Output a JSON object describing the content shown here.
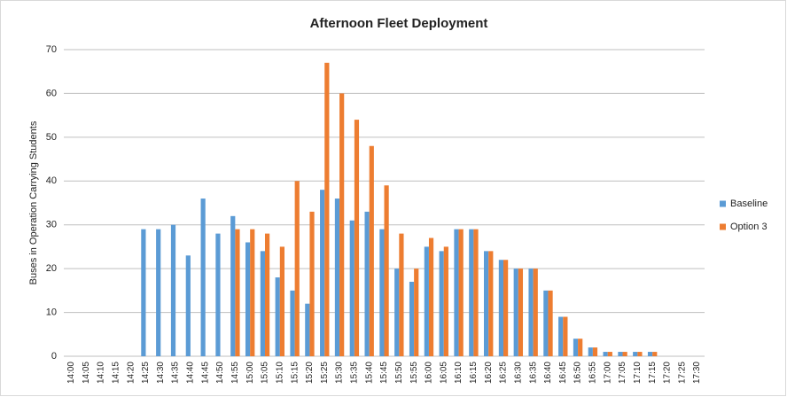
{
  "chart_data": {
    "type": "bar",
    "title": "Afternoon Fleet Deployment",
    "y_label": "Buses in Operation Carrying Students",
    "categories": [
      "14:00",
      "14:05",
      "14:10",
      "14:15",
      "14:20",
      "14:25",
      "14:30",
      "14:35",
      "14:40",
      "14:45",
      "14:50",
      "14:55",
      "15:00",
      "15:05",
      "15:10",
      "15:15",
      "15:20",
      "15:25",
      "15:30",
      "15:35",
      "15:40",
      "15:45",
      "15:50",
      "15:55",
      "16:00",
      "16:05",
      "16:10",
      "16:15",
      "16:20",
      "16:25",
      "16:30",
      "16:35",
      "16:40",
      "16:45",
      "16:50",
      "16:55",
      "17:00",
      "17:05",
      "17:10",
      "17:15",
      "17:20",
      "17:25",
      "17:30"
    ],
    "series": [
      {
        "name": "Baseline",
        "color": "#5b9bd5",
        "values": [
          0,
          0,
          0,
          0,
          0,
          29,
          29,
          30,
          23,
          36,
          28,
          32,
          26,
          24,
          18,
          15,
          12,
          38,
          36,
          31,
          33,
          29,
          20,
          17,
          25,
          24,
          29,
          29,
          24,
          22,
          20,
          20,
          15,
          9,
          4,
          2,
          1,
          1,
          1,
          1,
          0,
          0,
          0
        ]
      },
      {
        "name": "Option 3",
        "color": "#ed7d31",
        "values": [
          0,
          0,
          0,
          0,
          0,
          0,
          0,
          0,
          0,
          0,
          0,
          29,
          29,
          28,
          25,
          40,
          33,
          67,
          60,
          54,
          48,
          39,
          28,
          20,
          27,
          25,
          29,
          29,
          24,
          22,
          20,
          20,
          15,
          9,
          4,
          2,
          1,
          1,
          1,
          1,
          0,
          0,
          0
        ]
      }
    ],
    "ylim": [
      0,
      70
    ],
    "yticks": [
      0,
      10,
      20,
      30,
      40,
      50,
      60,
      70
    ],
    "grid": true,
    "legend": "right"
  }
}
